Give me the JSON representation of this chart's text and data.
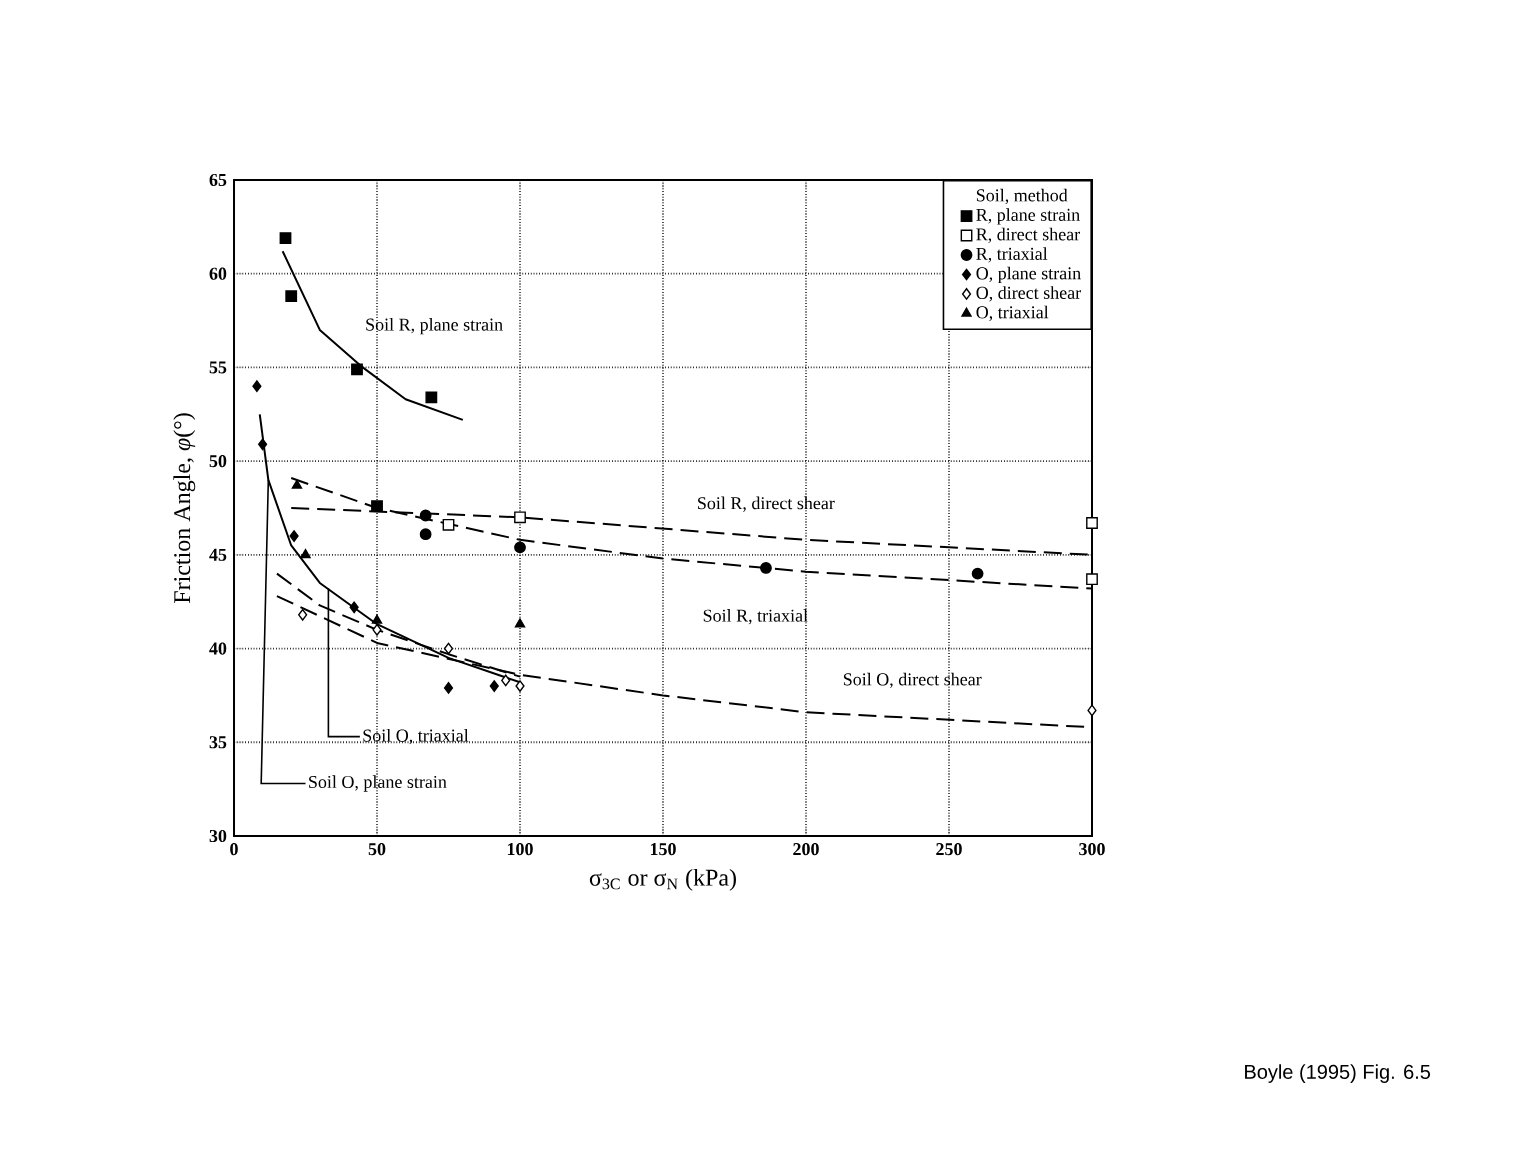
{
  "chart_data": {
    "type": "scatter",
    "xlabel": "σ$_{3C}$ or σ$_{N}$ (kPa)",
    "ylabel": "Friction Angle, *φ*(°)",
    "xlim": [
      0,
      300
    ],
    "ylim": [
      30,
      65
    ],
    "xticks": [
      0,
      50,
      100,
      150,
      200,
      250,
      300
    ],
    "yticks": [
      30,
      35,
      40,
      45,
      50,
      55,
      60,
      65
    ],
    "grid": true,
    "legend": "top right",
    "legend_title": "Soil, method",
    "series": [
      {
        "name": "R, plane strain",
        "marker": "square",
        "color": "#000000",
        "x": [
          18,
          20,
          43,
          69,
          50
        ],
        "values": [
          61.9,
          58.8,
          54.9,
          53.4,
          47.6
        ]
      },
      {
        "name": "R, direct shear",
        "marker": "square",
        "color": "#ffffff",
        "x": [
          75,
          100,
          300,
          300
        ],
        "values": [
          46.6,
          47,
          46.7,
          43.7
        ]
      },
      {
        "name": "R, triaxial",
        "marker": "circle",
        "color": "#000000",
        "x": [
          67,
          67,
          100,
          186,
          260
        ],
        "values": [
          47.1,
          46.1,
          45.4,
          44.3,
          44
        ]
      },
      {
        "name": "O, plane strain",
        "marker": "diamond",
        "color": "#000000",
        "x": [
          8,
          10,
          21,
          42,
          75,
          91
        ],
        "values": [
          54,
          50.9,
          46,
          42.2,
          37.9,
          38
        ]
      },
      {
        "name": "O, direct shear",
        "marker": "diamond",
        "color": "#ffffff",
        "x": [
          24,
          50,
          75,
          95,
          100,
          300
        ],
        "values": [
          41.8,
          41,
          40,
          38.3,
          38,
          36.7
        ]
      },
      {
        "name": "O, triaxial",
        "marker": "triangle",
        "color": "#000000",
        "x": [
          22,
          25,
          50,
          100
        ],
        "values": [
          48.7,
          45,
          41.5,
          41.3
        ]
      },
      {
        "type": "line",
        "line_style": "solid",
        "color": "#000000",
        "x": [
          17,
          30,
          45,
          60,
          80
        ],
        "values": [
          61.2,
          57,
          55,
          53.3,
          52.2
        ]
      },
      {
        "type": "line",
        "line_style": "dashed",
        "color": "#000000",
        "x": [
          20,
          100,
          200,
          300
        ],
        "values": [
          47.5,
          47,
          45.8,
          45
        ]
      },
      {
        "type": "line",
        "line_style": "dashed",
        "color": "#000000",
        "x": [
          20,
          50,
          100,
          150,
          200,
          300
        ],
        "values": [
          49.1,
          47.5,
          45.8,
          44.8,
          44.1,
          43.2
        ]
      },
      {
        "type": "line",
        "line_style": "solid",
        "color": "#000000",
        "x": [
          9,
          12,
          20,
          30,
          50,
          75,
          100
        ],
        "values": [
          52.5,
          49,
          45.5,
          43.5,
          41.3,
          39.5,
          38.2
        ]
      },
      {
        "type": "line",
        "line_style": "dashed",
        "color": "#000000",
        "x": [
          15,
          50,
          100,
          150,
          200,
          300
        ],
        "values": [
          42.8,
          40.3,
          38.6,
          37.5,
          36.6,
          35.8
        ]
      },
      {
        "type": "line",
        "line_style": "dashed",
        "color": "#000000",
        "x": [
          15,
          30,
          50,
          75,
          100
        ],
        "values": [
          44,
          42.3,
          41,
          39.7,
          38.5
        ]
      }
    ],
    "annotations": [
      "Soil R, plane strain",
      "Soil R, direct shear",
      "Soil R, triaxial",
      "Soil O, direct shear",
      {
        "text": "Soil O, triaxial",
        "x": 33,
        "y": 43.2
      },
      {
        "text": "Soil O, plane strain",
        "x": 12,
        "y": 49
      },
      "Boyle (1995) Fig. 6.5"
    ]
  }
}
